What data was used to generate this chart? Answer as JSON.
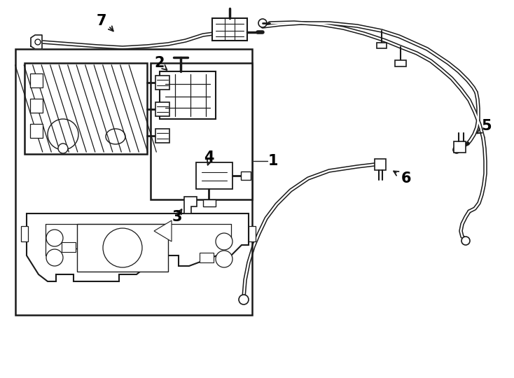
{
  "bg_color": "#ffffff",
  "line_color": "#1a1a1a",
  "label_color": "#000000",
  "figsize": [
    7.34,
    5.4
  ],
  "dpi": 100
}
